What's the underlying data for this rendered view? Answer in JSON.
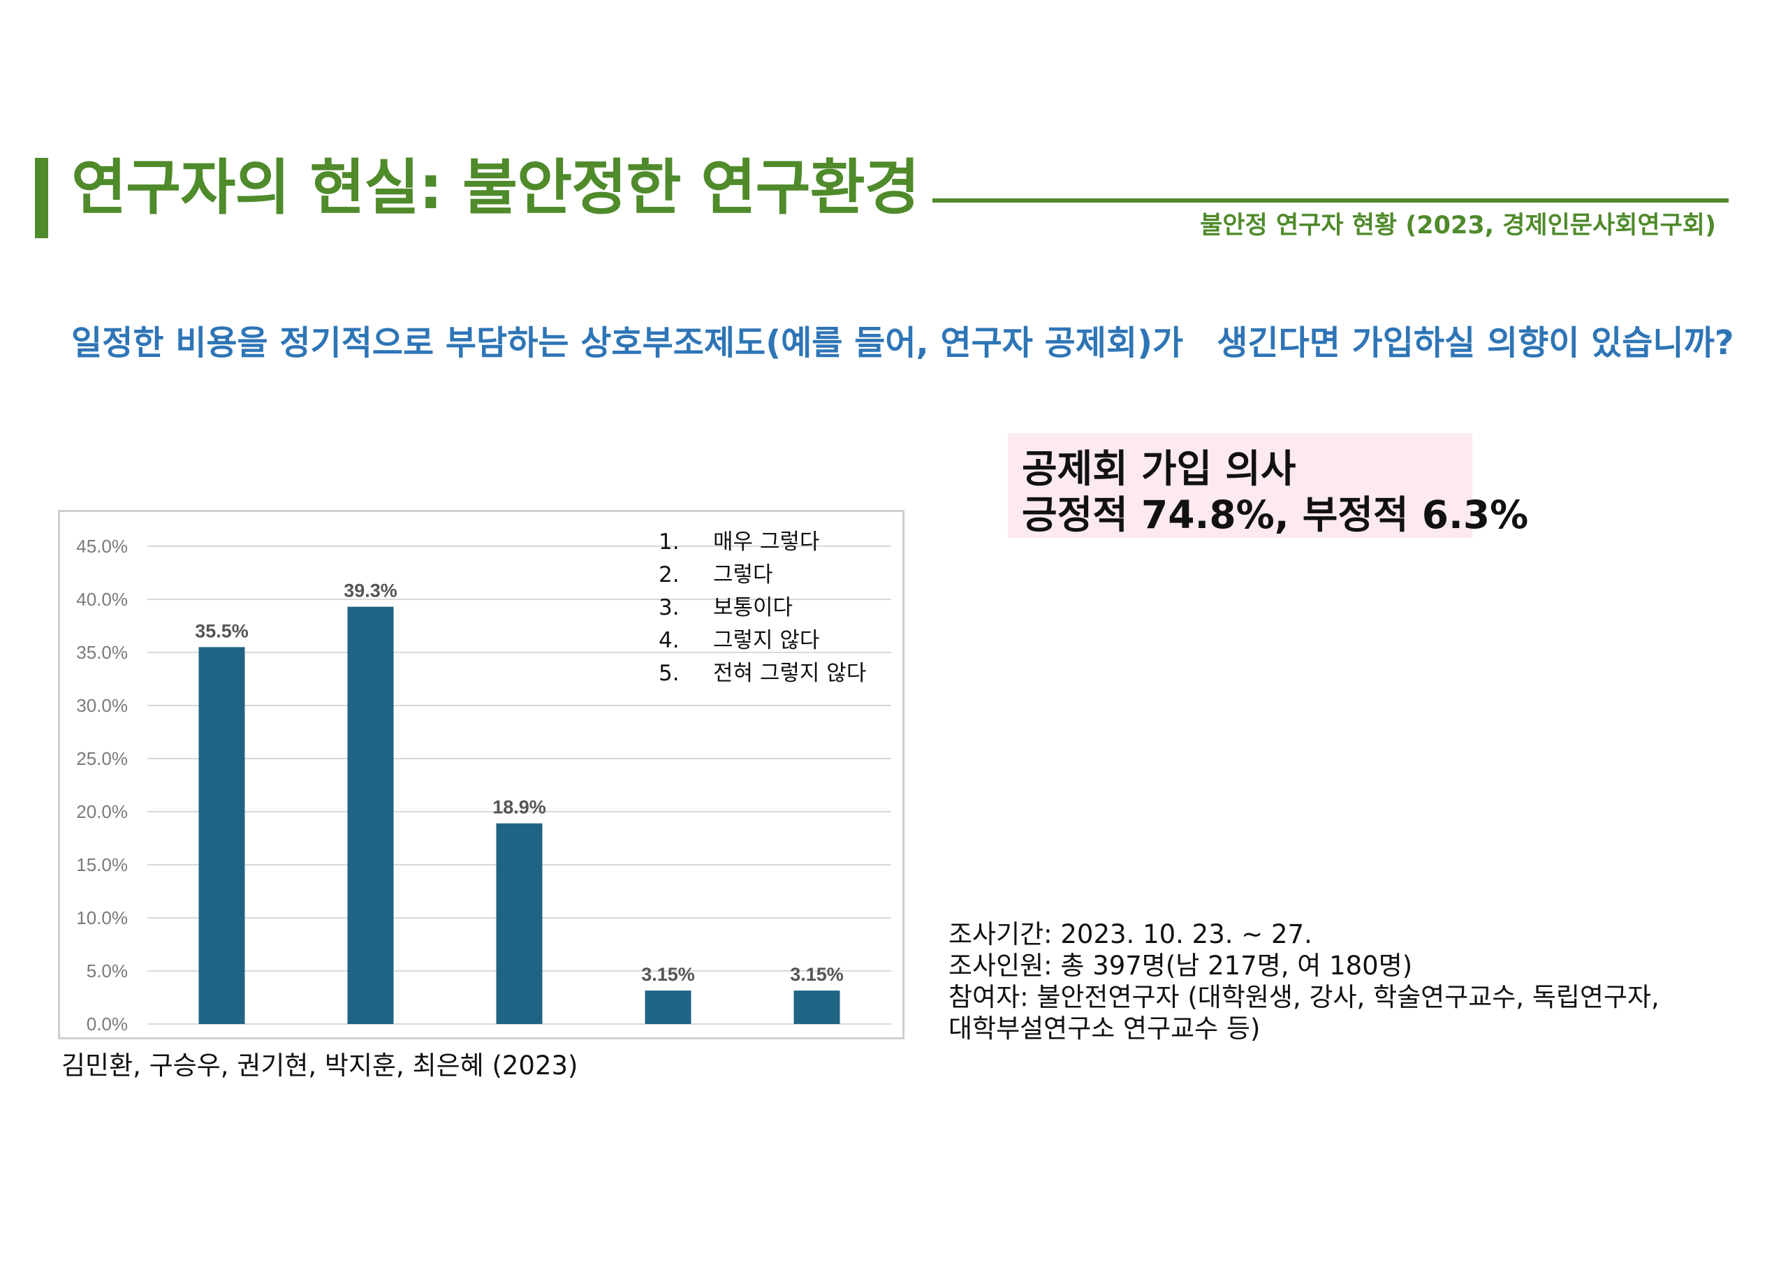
{
  "header": {
    "title": "연구자의 현실: 불안정한 연구환경",
    "source": "불안정 연구자 현황 (2023, 경제인문사회연구회)"
  },
  "question": "일정한 비용을 정기적으로 부담하는 상호부조제도(예를 들어, 연구자 공제회)가　생긴다면 가입하실 의향이 있습니까?",
  "summary": {
    "line1": "공제회 가입 의사",
    "line2": "긍정적 74.8%, 부정적 6.3%"
  },
  "legend": {
    "items": [
      {
        "num": "1.",
        "label": "매우 그렇다"
      },
      {
        "num": "2.",
        "label": "그렇다"
      },
      {
        "num": "3.",
        "label": "보통이다"
      },
      {
        "num": "4.",
        "label": "그렇지 않다"
      },
      {
        "num": "5.",
        "label": "전혀 그렇지 않다"
      }
    ]
  },
  "chart_data": {
    "type": "bar",
    "categories": [
      "1",
      "2",
      "3",
      "4",
      "5"
    ],
    "values": [
      35.5,
      39.3,
      18.9,
      3.15,
      3.15
    ],
    "data_labels": [
      "35.5%",
      "39.3%",
      "18.9%",
      "3.15%",
      "3.15%"
    ],
    "y_ticks": [
      "0.0%",
      "5.0%",
      "10.0%",
      "15.0%",
      "20.0%",
      "25.0%",
      "30.0%",
      "35.0%",
      "40.0%",
      "45.0%"
    ],
    "ylim": [
      0,
      45
    ],
    "grid": true,
    "bar_color": "#1f6484",
    "title": "",
    "xlabel": "",
    "ylabel": ""
  },
  "citation": "김민환, 구승우, 권기현, 박지훈, 최은혜 (2023)",
  "survey_info": {
    "period": "조사기간: 2023. 10. 23. ~ 27.",
    "respondents": "조사인원: 총 397명(남 217명, 여 180명)",
    "participants_1": "참여자: 불안전연구자 (대학원생, 강사, 학술연구교수, 독립연구자,",
    "participants_2": "대학부설연구소 연구교수 등)"
  },
  "colors": {
    "title_green": "#4f8a2b",
    "question_blue": "#2e75b6",
    "summary_bg": "#fde9f1"
  }
}
